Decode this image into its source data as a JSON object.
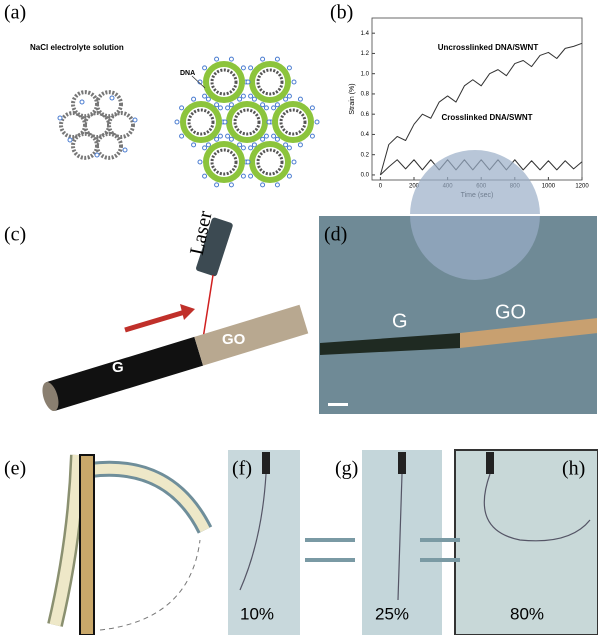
{
  "panels": {
    "a": {
      "label": "(a)",
      "solution": "NaCl electrolyte solution",
      "dna": "DNA"
    },
    "b": {
      "label": "(b)"
    },
    "c": {
      "label": "(c)",
      "laser": "Laser",
      "g": "G",
      "go": "GO"
    },
    "d": {
      "label": "(d)",
      "g": "G",
      "go": "GO"
    },
    "e": {
      "label": "(e)"
    },
    "f": {
      "label": "(f)",
      "strain": "10%"
    },
    "g": {
      "label": "(g)",
      "strain": "25%"
    },
    "h": {
      "label": "(h)",
      "strain": "80%"
    }
  },
  "chart_data": {
    "type": "line",
    "xlabel": "Time (sec)",
    "ylabel": "Strain (%)",
    "x": [
      0,
      50,
      100,
      150,
      200,
      250,
      300,
      350,
      400,
      450,
      500,
      550,
      600,
      650,
      700,
      750,
      800,
      850,
      900,
      950,
      1000,
      1050,
      1100,
      1150,
      1200
    ],
    "series": [
      {
        "name": "Uncrosslinked DNA/SWNT",
        "color": "#333333",
        "values": [
          0,
          0.3,
          0.38,
          0.34,
          0.5,
          0.6,
          0.56,
          0.72,
          0.78,
          0.72,
          0.88,
          0.94,
          0.88,
          1.0,
          1.04,
          0.98,
          1.1,
          1.13,
          1.07,
          1.18,
          1.21,
          1.15,
          1.25,
          1.27,
          1.3
        ]
      },
      {
        "name": "Crosslinked DNA/SWNT",
        "color": "#333333",
        "values": [
          0,
          0.08,
          0.15,
          0.06,
          0.15,
          0.05,
          0.15,
          0.05,
          0.15,
          0.05,
          0.15,
          0.05,
          0.15,
          0.05,
          0.15,
          0.05,
          0.15,
          0.05,
          0.14,
          0.05,
          0.14,
          0.05,
          0.14,
          0.06,
          0.13
        ]
      }
    ],
    "xlim": [
      -50,
      1200
    ],
    "ylim": [
      -0.05,
      1.55
    ],
    "xticks": [
      0,
      200,
      400,
      600,
      800,
      1000,
      1200
    ],
    "yticks": [
      {
        "value": 0,
        "label": "0.0"
      },
      0.2,
      0.4,
      0.6,
      0.8,
      {
        "value": 1,
        "label": "1.0"
      },
      1.2,
      1.4
    ]
  }
}
